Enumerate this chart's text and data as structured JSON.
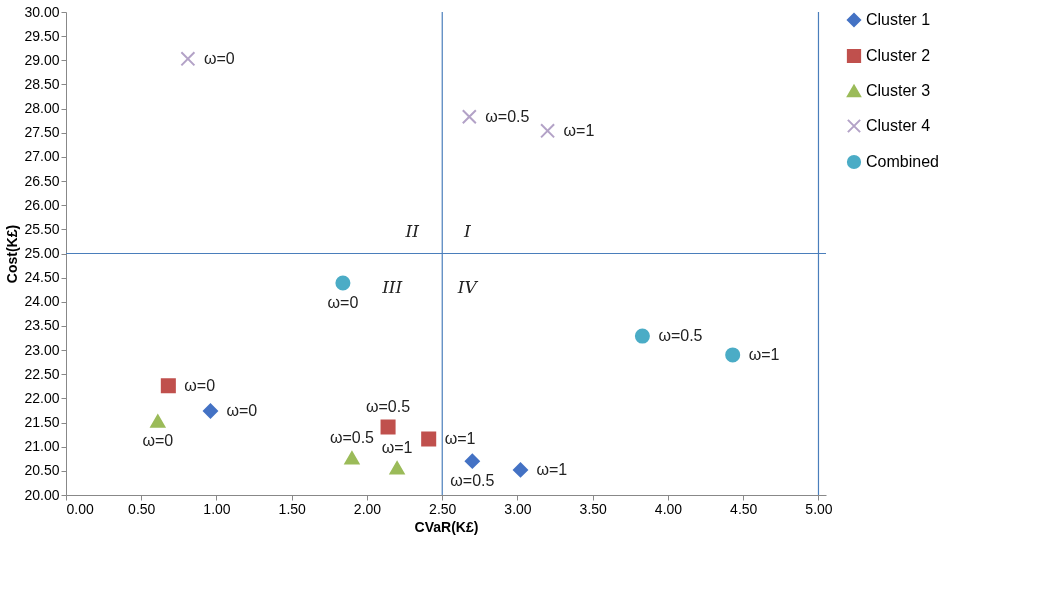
{
  "chart_data": {
    "type": "scatter",
    "xlabel": "CVaR(K£)",
    "ylabel": "Cost(K£)",
    "xlim": [
      0,
      5.05
    ],
    "xticks": [
      {
        "value": 0,
        "label": "0.00"
      },
      {
        "value": 0.5,
        "label": "0.50"
      },
      {
        "value": 1,
        "label": "1.00"
      },
      {
        "value": 1.5,
        "label": "1.50"
      },
      {
        "value": 2,
        "label": "2.00"
      },
      {
        "value": 2.5,
        "label": "2.50"
      },
      {
        "value": 3,
        "label": "3.00"
      },
      {
        "value": 3.5,
        "label": "3.50"
      },
      {
        "value": 4,
        "label": "4.00"
      },
      {
        "value": 4.5,
        "label": "4.50"
      },
      {
        "value": 5,
        "label": "5.00"
      }
    ],
    "ylim": [
      20,
      30
    ],
    "yticks": [
      {
        "value": 20,
        "label": "20.00"
      },
      {
        "value": 20.5,
        "label": "20.50"
      },
      {
        "value": 21,
        "label": "21.00"
      },
      {
        "value": 21.5,
        "label": "21.50"
      },
      {
        "value": 22,
        "label": "22.00"
      },
      {
        "value": 22.5,
        "label": "22.50"
      },
      {
        "value": 23,
        "label": "23.00"
      },
      {
        "value": 23.5,
        "label": "23.50"
      },
      {
        "value": 24,
        "label": "24.00"
      },
      {
        "value": 24.5,
        "label": "24.50"
      },
      {
        "value": 25,
        "label": "25.00"
      },
      {
        "value": 25.5,
        "label": "25.50"
      },
      {
        "value": 26,
        "label": "26.00"
      },
      {
        "value": 26.5,
        "label": "26.50"
      },
      {
        "value": 27,
        "label": "27.00"
      },
      {
        "value": 27.5,
        "label": "27.50"
      },
      {
        "value": 28,
        "label": "28.00"
      },
      {
        "value": 28.5,
        "label": "28.50"
      },
      {
        "value": 29,
        "label": "29.00"
      },
      {
        "value": 29.5,
        "label": "29.50"
      },
      {
        "value": 30,
        "label": "30.00"
      }
    ],
    "series": [
      {
        "name": "Cluster 1",
        "color": "#4472c4",
        "marker": "diamond",
        "x": [
          0.96,
          2.7,
          3.02
        ],
        "values": [
          21.74,
          20.7,
          20.52
        ]
      },
      {
        "name": "Cluster 2",
        "color": "#c0504d",
        "marker": "square",
        "x": [
          0.68,
          2.14,
          2.41
        ],
        "values": [
          22.26,
          21.41,
          21.16
        ]
      },
      {
        "name": "Cluster 3",
        "color": "#9bbb59",
        "marker": "triangle",
        "x": [
          0.61,
          1.9,
          2.2
        ],
        "values": [
          21.53,
          20.77,
          20.56
        ]
      },
      {
        "name": "Cluster 4",
        "color": "#b3a2c7",
        "marker": "cross",
        "x": [
          0.81,
          2.68,
          3.2
        ],
        "values": [
          29.03,
          27.83,
          27.54
        ]
      },
      {
        "name": "Combined",
        "color": "#4bacc6",
        "marker": "circle",
        "x": [
          1.84,
          3.83,
          4.43
        ],
        "values": [
          24.39,
          23.29,
          22.9
        ]
      }
    ],
    "ref_lines": [
      {
        "axis": "x",
        "value": 2.5,
        "color": "#4a7ebb"
      },
      {
        "axis": "y",
        "value": 25,
        "color": "#4a7ebb"
      },
      {
        "axis": "x",
        "value": 5,
        "color": "#4a7ebb"
      }
    ],
    "annotations": [
      "II",
      "I",
      "III",
      "IV",
      {
        "text": "ω=0",
        "x": 0.81,
        "y": 29.03
      },
      {
        "text": "ω=0.5",
        "x": 2.68,
        "y": 27.83
      },
      {
        "text": "ω=1",
        "x": 3.2,
        "y": 27.54
      },
      {
        "text": "ω=0",
        "x": 1.84,
        "y": 24.39
      },
      {
        "text": "ω=0.5",
        "x": 3.83,
        "y": 23.29
      },
      {
        "text": "ω=1",
        "x": 4.43,
        "y": 22.9
      },
      {
        "text": "ω=0",
        "x": 0.68,
        "y": 22.26
      },
      {
        "text": "ω=0",
        "x": 0.96,
        "y": 21.74
      },
      {
        "text": "ω=0",
        "x": 0.61,
        "y": 21.53
      },
      {
        "text": "ω=0.5",
        "x": 2.14,
        "y": 21.41
      },
      {
        "text": "ω=1",
        "x": 2.41,
        "y": 21.16
      },
      {
        "text": "ω=0.5",
        "x": 1.9,
        "y": 20.77
      },
      {
        "text": "ω=1",
        "x": 2.2,
        "y": 20.56
      },
      {
        "text": "ω=0.5",
        "x": 2.7,
        "y": 20.7
      },
      {
        "text": "ω=1",
        "x": 3.02,
        "y": 20.52
      }
    ],
    "legend": "right",
    "grid": false
  }
}
